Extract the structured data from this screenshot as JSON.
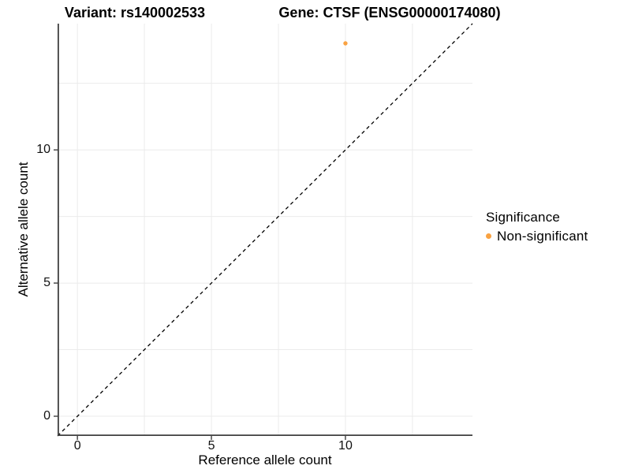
{
  "colors": {
    "background": "#ffffff",
    "grid": "#ebebeb",
    "axis": "#3f3f3f",
    "identity_line": "#000000",
    "point_orange": "#F9A242",
    "text": "#000000"
  },
  "chart_data": {
    "type": "scatter",
    "titles": {
      "variant": "Variant: rs140002533",
      "gene": "Gene: CTSF (ENSG00000174080)"
    },
    "xlabel": "Reference allele count",
    "ylabel": "Alternative allele count",
    "xlim": [
      -0.74,
      14.74
    ],
    "ylim": [
      -0.74,
      14.74
    ],
    "x_ticks": [
      0,
      5,
      10
    ],
    "y_ticks": [
      0,
      5,
      10
    ],
    "gridlines": [
      0,
      2.5,
      5,
      7.5,
      10,
      12.5
    ],
    "grid": true,
    "identity_line": {
      "style": "dashed",
      "slope": 1,
      "intercept": 0,
      "from": -0.74,
      "to": 14.74
    },
    "points": [
      {
        "x": 10,
        "y": 14,
        "series": "Non-significant"
      }
    ],
    "legend": {
      "title": "Significance",
      "position": "right",
      "items": [
        {
          "label": "Non-significant",
          "color": "#F9A242"
        }
      ]
    }
  }
}
